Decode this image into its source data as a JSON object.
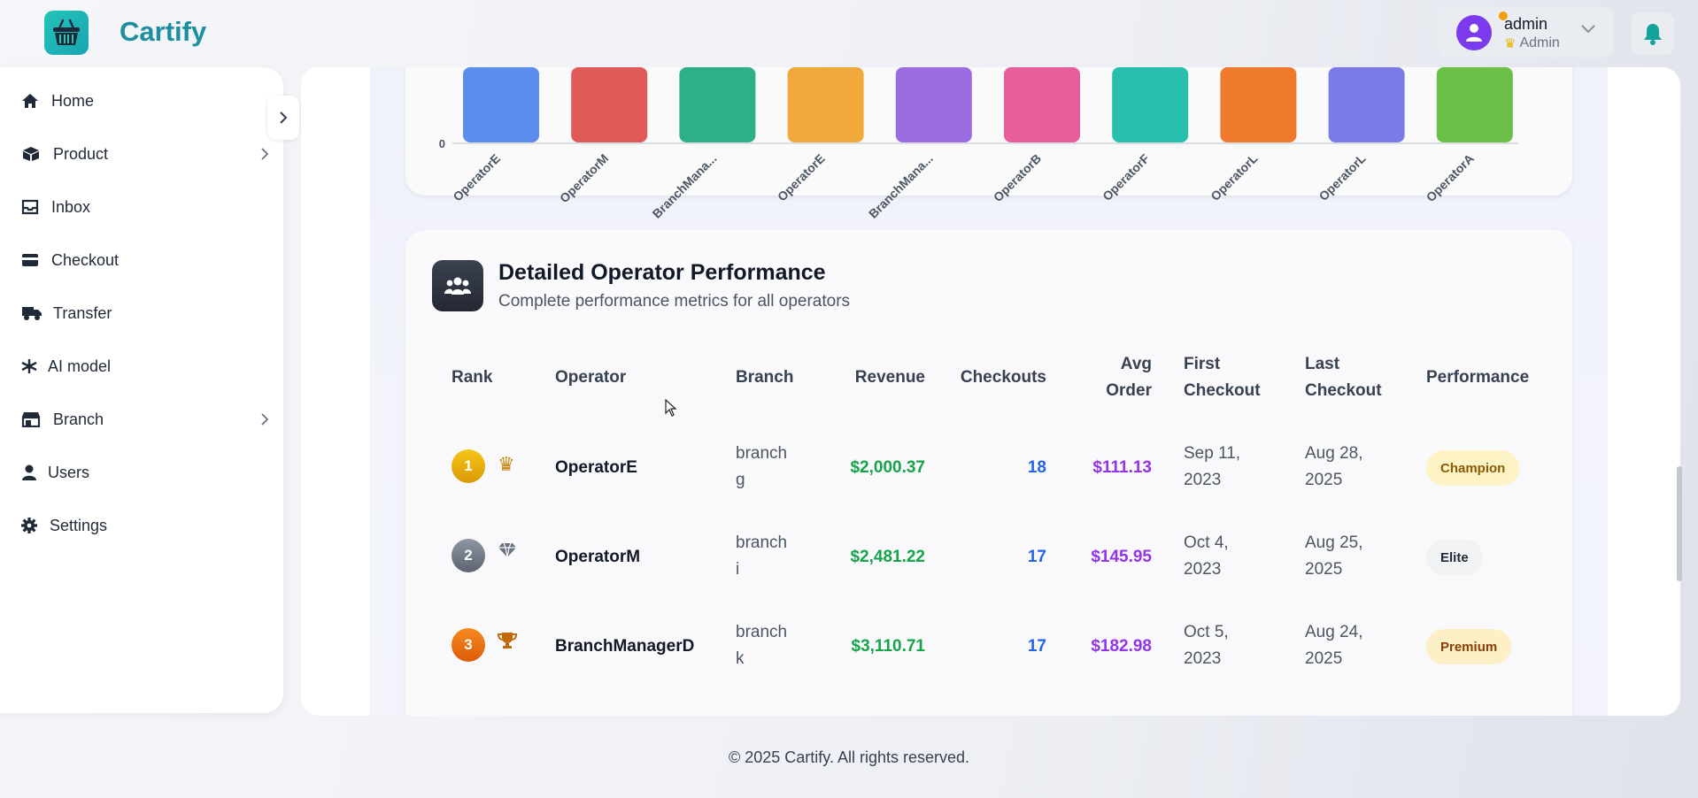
{
  "app": {
    "brand": "Cartify",
    "colors": {
      "brand": "#1b8fa0",
      "accent": "#22c4b8"
    }
  },
  "user": {
    "name": "admin",
    "role": "Admin"
  },
  "sidebar": {
    "items": [
      {
        "label": "Home",
        "icon": "home-icon"
      },
      {
        "label": "Product",
        "icon": "box-icon",
        "has_submenu": true
      },
      {
        "label": "Inbox",
        "icon": "inbox-icon"
      },
      {
        "label": "Checkout",
        "icon": "credit-card-icon"
      },
      {
        "label": "Transfer",
        "icon": "truck-icon"
      },
      {
        "label": "AI model",
        "icon": "network-icon"
      },
      {
        "label": "Branch",
        "icon": "store-icon",
        "has_submenu": true
      },
      {
        "label": "Users",
        "icon": "user-icon"
      },
      {
        "label": "Settings",
        "icon": "gear-icon"
      }
    ]
  },
  "chart_data": {
    "type": "bar",
    "categories": [
      "OperatorE",
      "OperatorM",
      "BranchMana...",
      "OperatorE",
      "BranchMana...",
      "OperatorB",
      "OperatorF",
      "OperatorL",
      "OperatorL",
      "OperatorA"
    ],
    "y_tick_visible": "0",
    "colors": [
      "#5b8def",
      "#e05a5a",
      "#2db08a",
      "#f2a93b",
      "#9b6ce0",
      "#e85d9c",
      "#28bfae",
      "#f07a2b",
      "#7b7be8",
      "#6cc04a"
    ]
  },
  "performance": {
    "title": "Detailed Operator Performance",
    "subtitle": "Complete performance metrics for all operators",
    "columns": {
      "rank": "Rank",
      "operator": "Operator",
      "branch": "Branch",
      "revenue": "Revenue",
      "checkouts": "Checkouts",
      "avg_order_1": "Avg",
      "avg_order_2": "Order",
      "first_1": "First",
      "first_2": "Checkout",
      "last_1": "Last",
      "last_2": "Checkout",
      "performance": "Performance"
    },
    "rows": [
      {
        "rank": "1",
        "rank_icon": "crown-icon",
        "operator": "OperatorE",
        "branch_1": "branch",
        "branch_2": "g",
        "revenue": "$2,000.37",
        "checkouts": "18",
        "avg_order": "$111.13",
        "first_1": "Sep 11,",
        "first_2": "2023",
        "last_1": "Aug 28,",
        "last_2": "2025",
        "performance": "Champion"
      },
      {
        "rank": "2",
        "rank_icon": "diamond-icon",
        "operator": "OperatorM",
        "branch_1": "branch",
        "branch_2": "i",
        "revenue": "$2,481.22",
        "checkouts": "17",
        "avg_order": "$145.95",
        "first_1": "Oct 4,",
        "first_2": "2023",
        "last_1": "Aug 25,",
        "last_2": "2025",
        "performance": "Elite"
      },
      {
        "rank": "3",
        "rank_icon": "trophy-icon",
        "operator": "BranchManagerD",
        "branch_1": "branch",
        "branch_2": "k",
        "revenue": "$3,110.71",
        "checkouts": "17",
        "avg_order": "$182.98",
        "first_1": "Oct 5,",
        "first_2": "2023",
        "last_1": "Aug 24,",
        "last_2": "2025",
        "performance": "Premium"
      }
    ]
  },
  "footer": {
    "text": "© 2025 Cartify. All rights reserved."
  }
}
